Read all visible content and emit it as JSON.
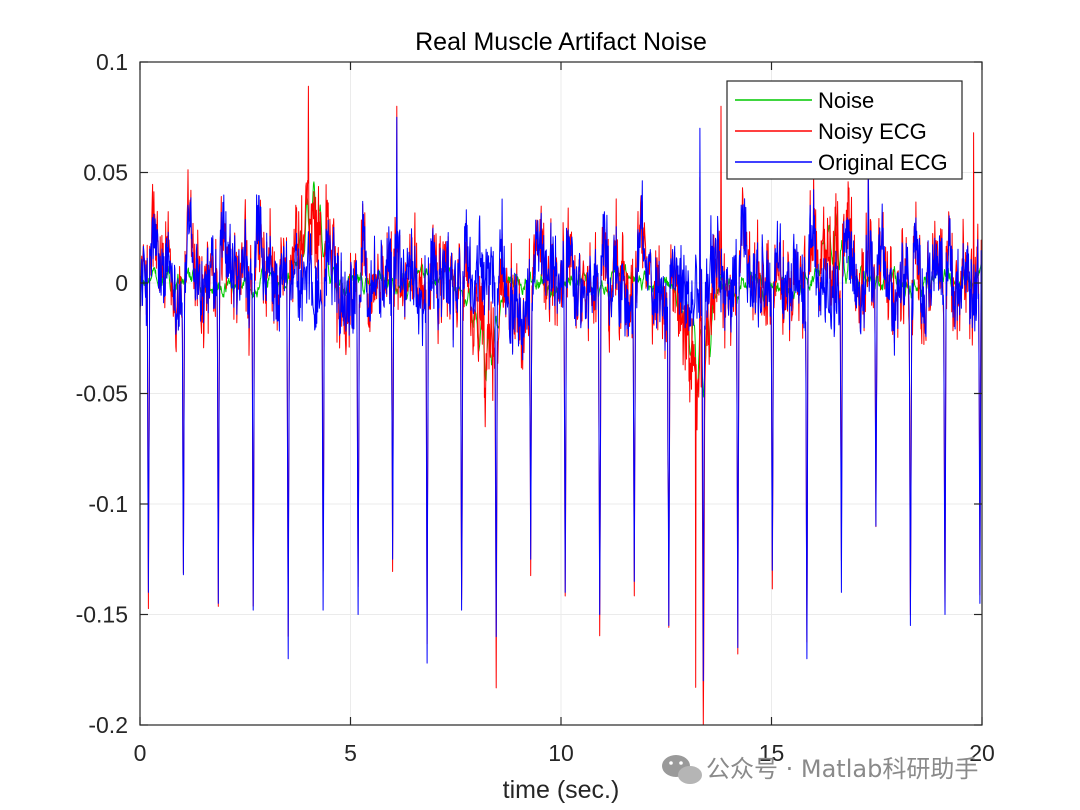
{
  "chart_data": {
    "type": "line",
    "title": "Real Muscle Artifact Noise",
    "xlabel": "time (sec.)",
    "ylabel": "",
    "xlim": [
      0,
      20
    ],
    "ylim": [
      -0.2,
      0.1
    ],
    "xticks": [
      0,
      5,
      10,
      15,
      20
    ],
    "xtick_labels": [
      "0",
      "5",
      "10",
      "15",
      "20"
    ],
    "yticks": [
      0.1,
      0.05,
      0,
      -0.05,
      -0.1,
      -0.15,
      -0.2
    ],
    "ytick_labels": [
      "0.1",
      "0.05",
      "0",
      "-0.05",
      "-0.1",
      "-0.15",
      "-0.2"
    ],
    "grid": true,
    "legend_position": "top-right",
    "beat_times": [
      0.2,
      1.03,
      1.86,
      2.69,
      3.52,
      4.35,
      5.18,
      6.0,
      6.82,
      7.64,
      8.46,
      9.28,
      10.1,
      10.92,
      11.74,
      12.56,
      13.38,
      14.2,
      15.02,
      15.84,
      16.66,
      17.48,
      18.3,
      19.12,
      19.95
    ],
    "beat_minima": [
      -0.14,
      -0.132,
      -0.145,
      -0.148,
      -0.17,
      -0.148,
      -0.15,
      -0.125,
      -0.172,
      -0.148,
      -0.16,
      -0.125,
      -0.14,
      -0.15,
      -0.135,
      -0.155,
      -0.18,
      -0.165,
      -0.13,
      -0.17,
      -0.14,
      -0.11,
      -0.155,
      -0.15,
      -0.145
    ],
    "series": [
      {
        "name": "Noise",
        "color": "#00c800",
        "peak_events": [
          {
            "t": 4.1,
            "v": 0.045
          },
          {
            "t": 8.2,
            "v": -0.04
          },
          {
            "t": 13.3,
            "v": -0.055
          },
          {
            "t": 16.5,
            "v": 0.03
          }
        ]
      },
      {
        "name": "Noisy ECG",
        "color": "#ff0000",
        "peak_events": [
          {
            "t": 4.0,
            "v": 0.089
          },
          {
            "t": 6.1,
            "v": 0.08
          },
          {
            "t": 8.2,
            "v": -0.065
          },
          {
            "t": 13.2,
            "v": -0.183
          },
          {
            "t": 13.8,
            "v": 0.08
          },
          {
            "t": 19.8,
            "v": 0.068
          }
        ]
      },
      {
        "name": "Original ECG",
        "color": "#0000ff",
        "peak_events": [
          {
            "t": 6.1,
            "v": 0.075
          },
          {
            "t": 13.3,
            "v": 0.07
          },
          {
            "t": 17.3,
            "v": 0.055
          }
        ]
      }
    ]
  },
  "watermark": {
    "text": "公众号 · Matlab科研助手",
    "icon": "wechat-icon",
    "color": "#8a8a8a"
  }
}
